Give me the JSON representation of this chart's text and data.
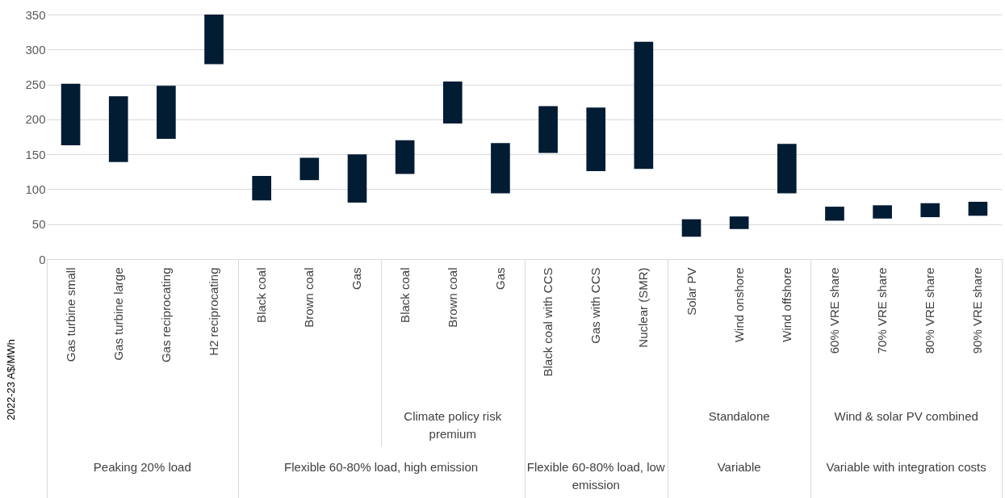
{
  "chart_data": {
    "type": "bar",
    "ylabel": "2022-23 A$/MWh",
    "categories": [
      "Gas turbine small",
      "Gas turbine large",
      "Gas reciprocating",
      "H2 reciprocating",
      "Black coal",
      "Brown coal",
      "Gas",
      "Black coal",
      "Brown coal",
      "Gas",
      "Black coal with CCS",
      "Gas with CCS",
      "Nuclear (SMR)",
      "Solar PV",
      "Wind onshore",
      "Wind offshore",
      "60% VRE share",
      "70% VRE share",
      "80% VRE share",
      "90% VRE share"
    ],
    "base": [
      163,
      139,
      172,
      279,
      84,
      113,
      81,
      122,
      194,
      94,
      152,
      126,
      129,
      32,
      43,
      94,
      55,
      58,
      60,
      62
    ],
    "values": [
      88,
      94,
      76,
      71,
      35,
      32,
      69,
      48,
      60,
      72,
      67,
      91,
      182,
      25,
      18,
      71,
      20,
      19,
      20,
      20
    ],
    "color": "#021c33",
    "ylim": [
      0,
      350
    ],
    "yticks": [
      0,
      50,
      100,
      150,
      200,
      250,
      300,
      350
    ],
    "grid": "y",
    "annotations": [
      "Climate policy risk premium",
      "Standalone",
      "Wind & solar PV combined",
      "Peaking 20% load",
      "Flexible 60-80% load, high emission",
      "Flexible 60-80% load, low emission",
      "Variable",
      "Variable with integration costs"
    ]
  }
}
